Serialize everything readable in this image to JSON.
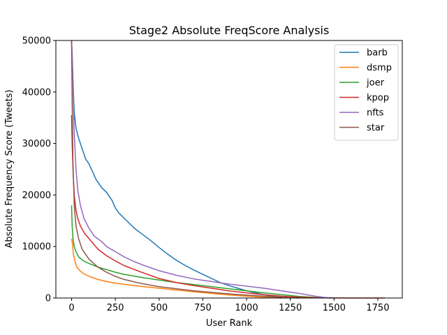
{
  "chart_data": {
    "type": "line",
    "title": "Stage2 Absolute FreqScore Analysis",
    "xlabel": "User Rank",
    "ylabel": "Absolute Frequency Score (Tweets)",
    "xlim": [
      -90,
      1890
    ],
    "ylim": [
      0,
      50000
    ],
    "xticks": [
      0,
      250,
      500,
      750,
      1000,
      1250,
      1500,
      1750
    ],
    "yticks": [
      0,
      10000,
      20000,
      30000,
      40000,
      50000
    ],
    "grid": false,
    "legend_position": "top-right",
    "series": [
      {
        "name": "barb",
        "color": "#1f77b4",
        "points": [
          [
            0,
            50000
          ],
          [
            5,
            45000
          ],
          [
            10,
            40000
          ],
          [
            15,
            36000
          ],
          [
            25,
            33000
          ],
          [
            40,
            31000
          ],
          [
            60,
            29000
          ],
          [
            80,
            27000
          ],
          [
            100,
            26000
          ],
          [
            120,
            24500
          ],
          [
            140,
            23000
          ],
          [
            170,
            21500
          ],
          [
            200,
            20500
          ],
          [
            230,
            19000
          ],
          [
            250,
            17500
          ],
          [
            270,
            16500
          ],
          [
            300,
            15500
          ],
          [
            330,
            14500
          ],
          [
            360,
            13500
          ],
          [
            400,
            12500
          ],
          [
            450,
            11200
          ],
          [
            500,
            9800
          ],
          [
            550,
            8500
          ],
          [
            600,
            7300
          ],
          [
            650,
            6300
          ],
          [
            700,
            5400
          ],
          [
            750,
            4600
          ],
          [
            800,
            3800
          ],
          [
            850,
            3000
          ],
          [
            900,
            2400
          ],
          [
            950,
            1900
          ],
          [
            1000,
            1400
          ],
          [
            1050,
            1000
          ],
          [
            1100,
            650
          ],
          [
            1150,
            350
          ],
          [
            1180,
            150
          ],
          [
            1200,
            0
          ]
        ]
      },
      {
        "name": "dsmp",
        "color": "#ff7f0e",
        "points": [
          [
            0,
            11500
          ],
          [
            5,
            10500
          ],
          [
            10,
            8500
          ],
          [
            20,
            7000
          ],
          [
            30,
            6000
          ],
          [
            50,
            5200
          ],
          [
            70,
            4700
          ],
          [
            100,
            4200
          ],
          [
            150,
            3600
          ],
          [
            200,
            3200
          ],
          [
            250,
            2900
          ],
          [
            300,
            2650
          ],
          [
            400,
            2250
          ],
          [
            500,
            1900
          ],
          [
            600,
            1550
          ],
          [
            700,
            1200
          ],
          [
            800,
            900
          ],
          [
            900,
            600
          ],
          [
            1000,
            350
          ],
          [
            1100,
            150
          ],
          [
            1150,
            50
          ],
          [
            1200,
            0
          ]
        ]
      },
      {
        "name": "joer",
        "color": "#2ca02c",
        "points": [
          [
            0,
            18000
          ],
          [
            3,
            14000
          ],
          [
            8,
            11500
          ],
          [
            15,
            10000
          ],
          [
            25,
            9000
          ],
          [
            40,
            8000
          ],
          [
            60,
            7400
          ],
          [
            80,
            7000
          ],
          [
            100,
            6700
          ],
          [
            150,
            6000
          ],
          [
            200,
            5500
          ],
          [
            250,
            5000
          ],
          [
            300,
            4600
          ],
          [
            400,
            4000
          ],
          [
            500,
            3500
          ],
          [
            600,
            3000
          ],
          [
            700,
            2600
          ],
          [
            800,
            2200
          ],
          [
            900,
            1800
          ],
          [
            1000,
            1400
          ],
          [
            1100,
            1000
          ],
          [
            1200,
            650
          ],
          [
            1300,
            300
          ],
          [
            1400,
            100
          ],
          [
            1480,
            0
          ]
        ]
      },
      {
        "name": "kpop",
        "color": "#d62728",
        "points": [
          [
            0,
            35500
          ],
          [
            3,
            30000
          ],
          [
            8,
            25000
          ],
          [
            15,
            20000
          ],
          [
            25,
            17000
          ],
          [
            35,
            15500
          ],
          [
            50,
            14000
          ],
          [
            75,
            12500
          ],
          [
            100,
            11500
          ],
          [
            150,
            9500
          ],
          [
            200,
            8200
          ],
          [
            250,
            7200
          ],
          [
            300,
            6300
          ],
          [
            400,
            5000
          ],
          [
            500,
            3800
          ],
          [
            600,
            3000
          ],
          [
            700,
            2400
          ],
          [
            800,
            1900
          ],
          [
            900,
            1400
          ],
          [
            1000,
            1000
          ],
          [
            1100,
            650
          ],
          [
            1200,
            350
          ],
          [
            1300,
            150
          ],
          [
            1400,
            50
          ],
          [
            1500,
            15
          ],
          [
            1600,
            5
          ],
          [
            1700,
            2
          ],
          [
            1790,
            0
          ]
        ]
      },
      {
        "name": "nfts",
        "color": "#9467bd",
        "points": [
          [
            0,
            50000
          ],
          [
            5,
            45000
          ],
          [
            10,
            38000
          ],
          [
            15,
            32000
          ],
          [
            25,
            25000
          ],
          [
            35,
            21000
          ],
          [
            50,
            18000
          ],
          [
            70,
            15500
          ],
          [
            100,
            13500
          ],
          [
            130,
            12000
          ],
          [
            170,
            11000
          ],
          [
            200,
            10000
          ],
          [
            250,
            9000
          ],
          [
            300,
            8000
          ],
          [
            350,
            7200
          ],
          [
            400,
            6500
          ],
          [
            450,
            5900
          ],
          [
            500,
            5300
          ],
          [
            600,
            4400
          ],
          [
            700,
            3700
          ],
          [
            800,
            3200
          ],
          [
            900,
            2700
          ],
          [
            1000,
            2300
          ],
          [
            1100,
            1900
          ],
          [
            1200,
            1400
          ],
          [
            1300,
            900
          ],
          [
            1350,
            600
          ],
          [
            1400,
            300
          ],
          [
            1450,
            100
          ],
          [
            1500,
            0
          ]
        ]
      },
      {
        "name": "star",
        "color": "#8c564b",
        "points": [
          [
            0,
            50000
          ],
          [
            3,
            38000
          ],
          [
            8,
            26000
          ],
          [
            15,
            18000
          ],
          [
            25,
            14000
          ],
          [
            40,
            11500
          ],
          [
            60,
            9500
          ],
          [
            80,
            8500
          ],
          [
            100,
            7500
          ],
          [
            150,
            6000
          ],
          [
            200,
            5000
          ],
          [
            250,
            4200
          ],
          [
            300,
            3600
          ],
          [
            400,
            2800
          ],
          [
            500,
            2200
          ],
          [
            600,
            1800
          ],
          [
            700,
            1400
          ],
          [
            800,
            1100
          ],
          [
            900,
            800
          ],
          [
            1000,
            550
          ],
          [
            1100,
            350
          ],
          [
            1200,
            150
          ],
          [
            1250,
            50
          ],
          [
            1300,
            0
          ]
        ]
      }
    ]
  }
}
